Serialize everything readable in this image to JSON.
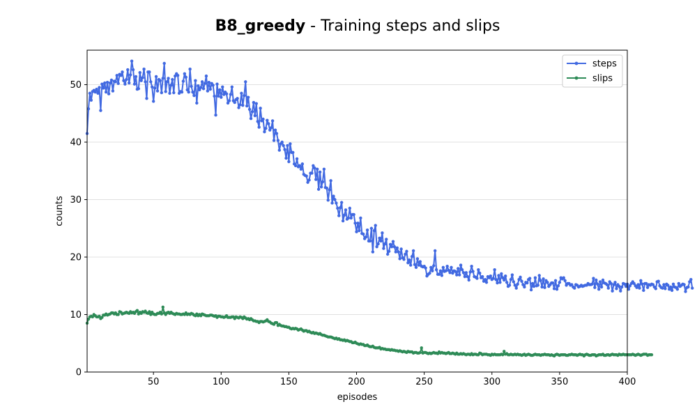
{
  "chart_data": {
    "type": "line",
    "title": {
      "bold_part": "B8_greedy",
      "rest": " - Training steps and slips"
    },
    "xlabel": "episodes",
    "ylabel": "counts",
    "xlim": [
      1,
      400
    ],
    "ylim": [
      0,
      56
    ],
    "x_ticks": [
      50,
      100,
      150,
      200,
      250,
      300,
      350,
      400
    ],
    "y_ticks": [
      0,
      10,
      20,
      30,
      40,
      50
    ],
    "grid": "y-major",
    "legend_position": "top-right",
    "x": {
      "start": 1,
      "end": 400,
      "step": 1
    },
    "series": [
      {
        "name": "steps",
        "color": "#4169e1",
        "values": [
          41.5,
          45.8,
          48.5,
          47.3,
          48.8,
          49,
          48.7,
          49.2,
          48.5,
          49.5,
          45.5,
          50.1,
          49.4,
          50.3,
          48.7,
          50.4,
          48.4,
          50.3,
          50.8,
          48.9,
          50.6,
          50.5,
          51.6,
          50.2,
          51.8,
          51.6,
          52.2,
          50.7,
          50.1,
          50.9,
          52.6,
          50.3,
          51.7,
          54.1,
          52.6,
          50.1,
          51.4,
          49.2,
          49.3,
          52.1,
          50.7,
          51.2,
          52.7,
          50.5,
          47.6,
          52.2,
          52.2,
          50.5,
          49.6,
          47.1,
          49.4,
          51.4,
          48.9,
          50.9,
          50.7,
          48.6,
          51.1,
          53.7,
          48.8,
          50.5,
          51.1,
          48.5,
          49.9,
          50.9,
          48.6,
          51.5,
          51.9,
          51.6,
          48.5,
          48.8,
          48.7,
          50.6,
          51.9,
          51.3,
          49.1,
          48.7,
          52.7,
          49.7,
          48.7,
          48.1,
          50.7,
          46.8,
          49.8,
          49.1,
          49.5,
          50.5,
          49.3,
          50.2,
          51.5,
          48.9,
          50.4,
          49.2,
          50.2,
          49.9,
          48,
          44.7,
          50.1,
          48,
          49.1,
          47.8,
          49.6,
          48.3,
          48.7,
          48.4,
          46.8,
          47.2,
          48.3,
          49.6,
          47.2,
          46.9,
          47.4,
          47.6,
          46,
          46.5,
          48.5,
          46.4,
          48.1,
          50.5,
          46.3,
          47.8,
          45.7,
          44.1,
          45.3,
          46.9,
          44.6,
          46.7,
          43.6,
          42.6,
          45.9,
          43.7,
          44,
          41.8,
          42.4,
          43.8,
          43.2,
          42.1,
          42.5,
          43.7,
          40.3,
          42.1,
          41.5,
          40.3,
          38.6,
          39.7,
          40,
          39.4,
          38.7,
          37.2,
          39.4,
          36.6,
          39.7,
          38.2,
          38.2,
          36.2,
          35.9,
          37.1,
          35.7,
          35.9,
          35.3,
          36.2,
          34.4,
          34.2,
          34.1,
          33,
          33.4,
          34.6,
          34.6,
          35.9,
          35.5,
          33.5,
          35.3,
          31.8,
          34.8,
          32.2,
          33.1,
          35.3,
          32.1,
          32,
          29.9,
          31.7,
          33.3,
          29.4,
          30.6,
          30,
          29.4,
          28.5,
          27.2,
          28.6,
          29.5,
          26.3,
          27.3,
          28.2,
          26.6,
          26.8,
          28.5,
          26.8,
          27.4,
          27.4,
          25.9,
          24.4,
          25.9,
          24.6,
          26.8,
          24.1,
          24,
          23.2,
          23.5,
          24.7,
          22.8,
          22.8,
          25,
          20.9,
          24.6,
          25.5,
          21.8,
          22.3,
          23.3,
          22.8,
          24.2,
          21.5,
          22.3,
          23.1,
          20.5,
          21,
          22.2,
          21.8,
          22.7,
          21.8,
          20.9,
          21.6,
          20.9,
          19.7,
          21.4,
          19.9,
          19.6,
          20.5,
          21,
          19,
          19.5,
          18.6,
          20.1,
          21.1,
          18.7,
          18.2,
          19.7,
          18.6,
          19.2,
          18.4,
          18.3,
          18.4,
          18.1,
          16.7,
          17,
          17.2,
          18.2,
          17.6,
          18.5,
          21.1,
          17.8,
          17,
          17,
          17.6,
          16.8,
          18.2,
          17.5,
          17.6,
          18.4,
          17.7,
          17.3,
          18.2,
          17.2,
          17.6,
          17.5,
          16.9,
          18,
          16.9,
          18.6,
          17.8,
          17.3,
          16.6,
          17.3,
          16.6,
          16,
          17.4,
          18.4,
          17.5,
          16.6,
          16.5,
          16.3,
          17.8,
          17.2,
          16.4,
          16.6,
          15.8,
          16.1,
          15.6,
          16.6,
          16.4,
          16.7,
          16.1,
          16.3,
          17.8,
          16.1,
          15.5,
          16.8,
          15.6,
          17.1,
          16.4,
          16,
          16.7,
          15.6,
          14.9,
          15.1,
          16.1,
          16.9,
          15.7,
          15.1,
          14.6,
          15.3,
          16.1,
          16.5,
          15.8,
          15.2,
          14.8,
          15.6,
          15.5,
          16.1,
          16.3,
          14.3,
          15.4,
          14.9,
          16.4,
          15,
          15.1,
          16.8,
          15.9,
          14.8,
          16.2,
          14.7,
          15.9,
          15.6,
          14.9,
          15.2,
          15.5,
          15.5,
          14.5,
          15.9,
          14.4,
          15,
          15.6,
          16.4,
          16.2,
          16.4,
          15.9,
          15.1,
          15.4,
          15.4,
          15.1,
          15.2,
          14.8,
          14.6,
          15.2,
          15.1,
          14.8,
          14.9,
          15.1,
          14.9,
          15,
          15.1,
          15.1,
          15.4,
          15.2,
          15.2,
          15.3,
          16.3,
          14.7,
          16,
          15.3,
          14.4,
          15.7,
          14.8,
          16,
          15.5,
          15.4,
          15.2,
          14.6,
          15.7,
          15.4,
          14.1,
          15.2,
          15.6,
          14.5,
          15.2,
          14.9,
          14.1,
          14.8,
          15.4,
          15.3,
          14.9,
          15.3,
          14.4,
          15,
          15.4,
          15.7,
          15.4,
          15,
          14.7,
          15.2,
          14.6,
          15.9,
          15.3,
          14.2,
          15.4,
          15.4,
          14.7,
          15.2,
          15.1,
          15.3,
          15.2,
          14.8,
          14.5,
          15.7,
          15.8,
          15,
          14.7,
          14.6,
          15.2,
          14.5,
          15.3,
          15.1,
          14.4,
          14.8,
          14.2,
          15.3,
          14.8,
          14.7,
          14.4,
          15.4,
          14.9,
          15.1,
          15.3,
          15.2,
          14,
          14.7,
          14.8,
          15.7,
          16.1,
          14.6
        ]
      },
      {
        "name": "slips",
        "color": "#2e8b57",
        "values": [
          8.5,
          9.2,
          9.6,
          9.7,
          9.6,
          10,
          9.8,
          9.6,
          9.6,
          9.7,
          9.3,
          9.5,
          9.9,
          9.9,
          10.1,
          9.9,
          10,
          10.1,
          10.3,
          10.3,
          10.1,
          10.3,
          10,
          10,
          10.5,
          10.4,
          10.1,
          10.2,
          10.3,
          10.4,
          10.3,
          10.2,
          10.5,
          10.3,
          10.4,
          10.2,
          10.5,
          10.7,
          10.1,
          10.4,
          10.2,
          10.5,
          10.4,
          10.6,
          10.3,
          10.2,
          10.5,
          10,
          10.4,
          10.1,
          10,
          10,
          10.2,
          10.2,
          10.4,
          10.1,
          11.3,
          10.3,
          10,
          10.3,
          10.4,
          10.2,
          10.4,
          10.2,
          10.1,
          10,
          10.2,
          10.1,
          10.1,
          10,
          10,
          10.1,
          10,
          10.3,
          10,
          10.1,
          10,
          10.2,
          10.1,
          9.9,
          9.8,
          10.1,
          9.8,
          10,
          9.8,
          10.1,
          10,
          9.9,
          9.8,
          9.8,
          9.8,
          9.9,
          9.9,
          9.8,
          9.7,
          9.8,
          9.5,
          9.7,
          9.7,
          9.6,
          9.6,
          9.5,
          9.6,
          9.8,
          9.5,
          9.5,
          9.5,
          9.6,
          9.6,
          9.3,
          9.6,
          9.5,
          9.4,
          9.6,
          9.5,
          9.3,
          9.6,
          9.4,
          9.2,
          9.3,
          9.1,
          9.3,
          9.1,
          8.9,
          8.9,
          8.8,
          8.8,
          8.6,
          8.8,
          8.8,
          8.7,
          8.8,
          8.9,
          9.1,
          8.8,
          8.7,
          8.5,
          8.4,
          8.3,
          8.6,
          8.6,
          8.1,
          8.3,
          8.1,
          8,
          8,
          7.9,
          7.9,
          7.8,
          7.8,
          7.6,
          7.5,
          7.6,
          7.5,
          7.6,
          7.5,
          7.3,
          7.4,
          7.5,
          7.3,
          7.1,
          7.2,
          7.2,
          7,
          7.1,
          6.9,
          6.8,
          6.9,
          6.7,
          6.8,
          6.7,
          6.6,
          6.7,
          6.5,
          6.4,
          6.4,
          6.3,
          6.2,
          6.1,
          6.1,
          6.1,
          6,
          5.9,
          5.8,
          5.9,
          5.7,
          5.8,
          5.6,
          5.6,
          5.5,
          5.6,
          5.4,
          5.5,
          5.4,
          5.3,
          5.3,
          5.1,
          5.1,
          5.2,
          5,
          4.9,
          4.8,
          4.9,
          4.8,
          4.8,
          4.6,
          4.6,
          4.7,
          4.5,
          4.4,
          4.4,
          4.5,
          4.3,
          4.2,
          4.2,
          4.2,
          4.3,
          4,
          4.1,
          4,
          4,
          3.9,
          3.9,
          3.9,
          3.8,
          3.9,
          3.8,
          3.8,
          3.7,
          3.7,
          3.6,
          3.7,
          3.6,
          3.5,
          3.6,
          3.5,
          3.4,
          3.6,
          3.5,
          3.5,
          3.5,
          3.3,
          3.4,
          3.4,
          3.3,
          3.3,
          3.4,
          4.2,
          3.3,
          3.4,
          3.4,
          3.3,
          3.2,
          3.3,
          3.2,
          3.3,
          3.4,
          3.3,
          3.3,
          3.2,
          3.5,
          3.3,
          3.4,
          3.3,
          3.3,
          3.2,
          3.3,
          3.4,
          3.2,
          3.2,
          3.3,
          3.2,
          3.1,
          3.3,
          3.1,
          3.1,
          3.2,
          3.1,
          3.2,
          3.1,
          3,
          3.1,
          3.1,
          3,
          3.2,
          3,
          3.1,
          3.1,
          3,
          3,
          3.3,
          3.2,
          3,
          3.1,
          3.1,
          3.1,
          3,
          3,
          2.9,
          3.1,
          3,
          3.1,
          3,
          3,
          3,
          3,
          3.1,
          3,
          3.6,
          3.1,
          3.2,
          3,
          3,
          3.1,
          3,
          3,
          3.1,
          3,
          3.1,
          3,
          3,
          2.9,
          3,
          3.1,
          2.9,
          3,
          3.1,
          3,
          2.9,
          2.9,
          3,
          3.1,
          3,
          3,
          3,
          2.9,
          3,
          3,
          3.1,
          3,
          3,
          3,
          2.9,
          3,
          2.9,
          2.8,
          3,
          3.1,
          3,
          2.9,
          3,
          3,
          3,
          3,
          2.9,
          2.9,
          3,
          3,
          3.1,
          3,
          3,
          3,
          2.9,
          3,
          3.1,
          3,
          3,
          2.8,
          3,
          3.1,
          3,
          2.9,
          2.9,
          3,
          3,
          3,
          2.8,
          2.9,
          3,
          3,
          3,
          3.1,
          2.9,
          2.9,
          3,
          3,
          2.9,
          3,
          3.1,
          3,
          3,
          3,
          2.9,
          3.1,
          3,
          3,
          3.1,
          3,
          3,
          3,
          3,
          3,
          3,
          3.1,
          3,
          2.9,
          3,
          3.1,
          3,
          2.9,
          3,
          3.1,
          3.1,
          3.1,
          2.9,
          3,
          3,
          3
        ]
      }
    ]
  }
}
